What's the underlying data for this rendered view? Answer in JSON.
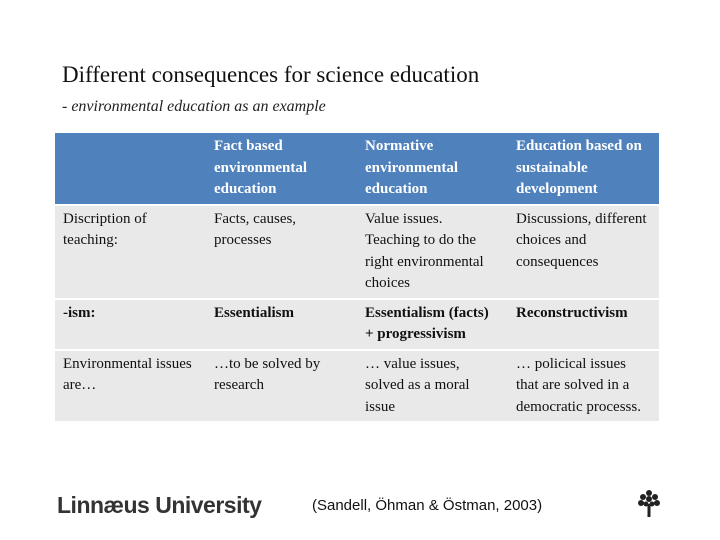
{
  "header": {
    "title": "Different consequences for science education",
    "subtitle": "- environmental education as an example"
  },
  "table": {
    "columns": [
      "Fact based environmental education",
      "Normative environmental education",
      "Education based on sustainable development"
    ],
    "rows": [
      [
        "Discription of teaching:",
        "Facts, causes, processes",
        "Value issues. Teaching to do the right environmental choices",
        "Discussions, different choices and consequences"
      ],
      [
        "-ism:",
        "Essentialism",
        "Essentialism (facts) + progressivism",
        "Reconstructivism"
      ],
      [
        "Environmental issues are…",
        "…to be solved by research",
        "… value issues, solved as a moral issue",
        "… policical issues that are solved in a democratic processs."
      ]
    ]
  },
  "footer": {
    "logo": "Linnæus University",
    "citation": "(Sandell, Öhman & Östman, 2003)"
  }
}
